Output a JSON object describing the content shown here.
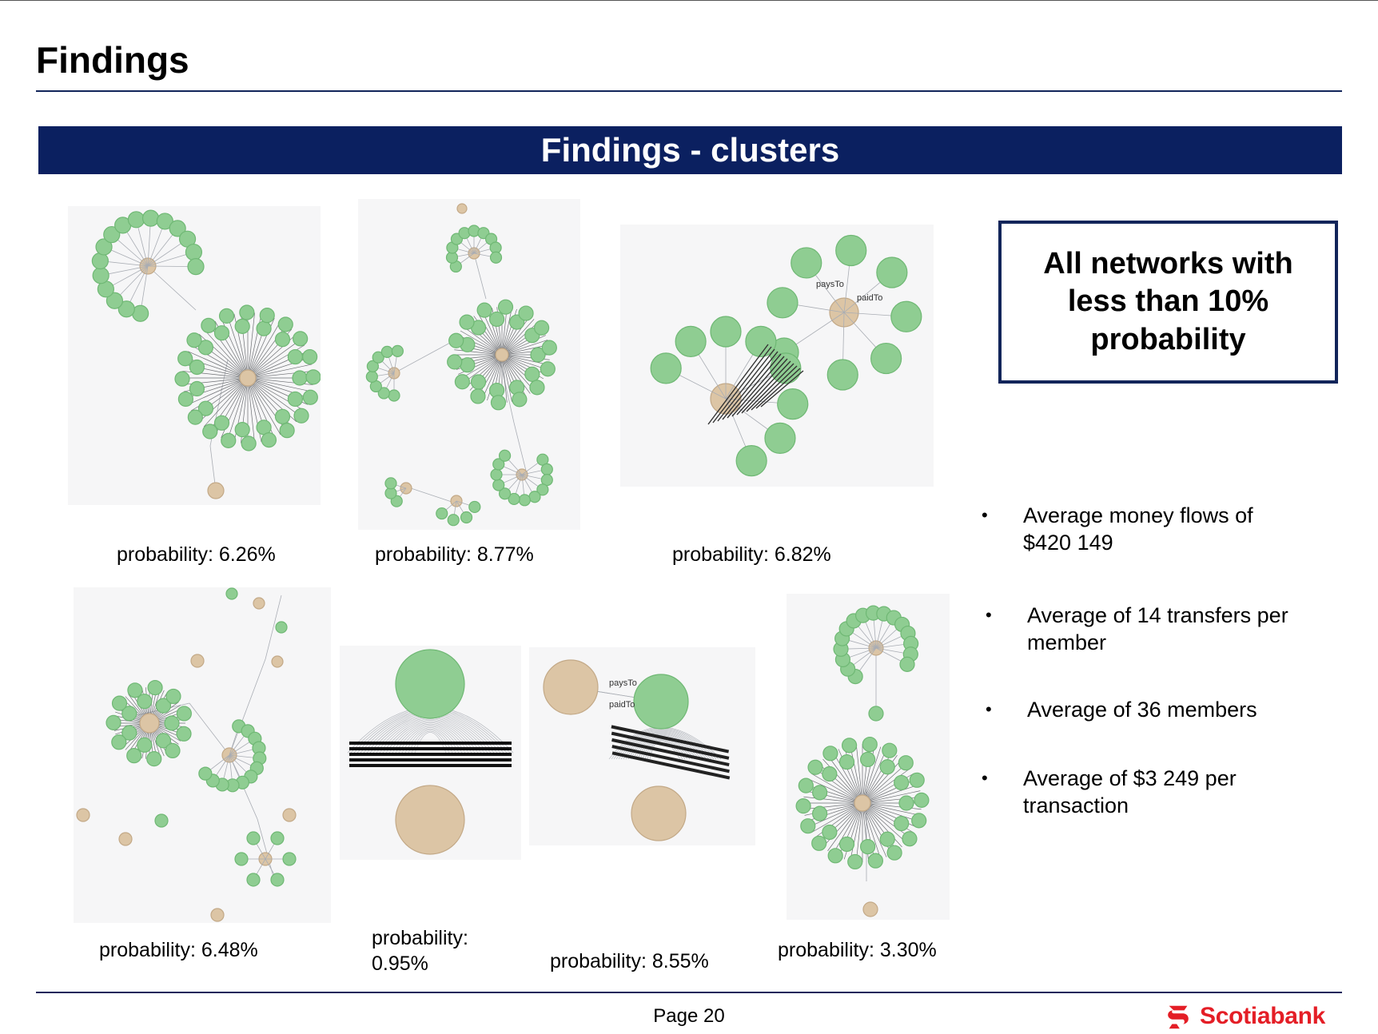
{
  "header": {
    "title": "Findings",
    "banner": "Findings - clusters"
  },
  "clusters": [
    {
      "label": "probability: 6.26%"
    },
    {
      "label": "probability: 8.77%"
    },
    {
      "label": "probability: 6.82%"
    },
    {
      "label": "probability: 6.48%"
    },
    {
      "label": "probability:\n0.95%"
    },
    {
      "label": "probability: 8.55%"
    },
    {
      "label": "probability: 3.30%"
    }
  ],
  "edge_labels": {
    "pays": "paysTo",
    "paid": "paidTo"
  },
  "callout": {
    "text": "All networks with less than 10% probability"
  },
  "bullets": [
    "Average money flows of $420 149",
    "Average of 14 transfers per member",
    "Average of  36 members",
    "Average of  $3 249 per transaction"
  ],
  "footer": {
    "page": "Page 20",
    "brand": "Scotiabank"
  },
  "colors": {
    "member": "#8fcd92",
    "member_stroke": "#6fb874",
    "hub": "#dcc5a5",
    "hub_stroke": "#c3a987",
    "navy": "#0b2060",
    "brand_red": "#e41e26"
  }
}
